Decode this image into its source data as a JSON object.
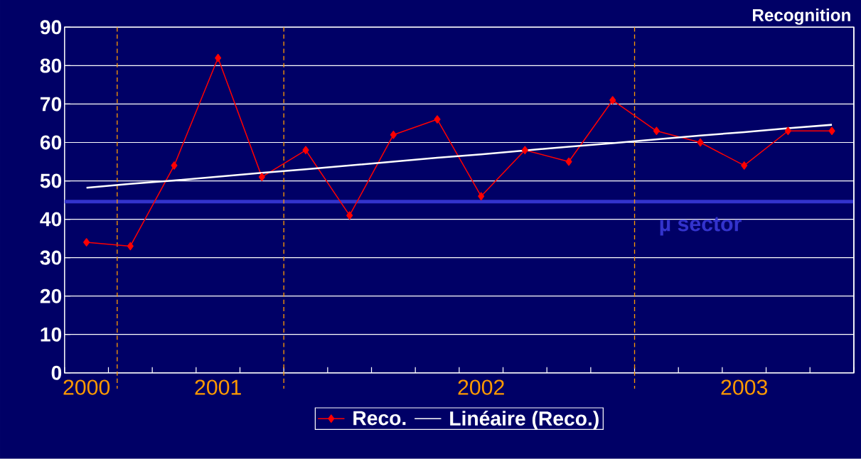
{
  "chart_data": {
    "type": "line",
    "ylabel": "Recognition",
    "categories": [
      "2000",
      null,
      null,
      "2001",
      null,
      null,
      null,
      null,
      null,
      "2002",
      null,
      null,
      null,
      null,
      null,
      "2003",
      null,
      null
    ],
    "series": [
      {
        "name": "Reco.",
        "color": "#ff0000",
        "marker": "diamond",
        "values": [
          34,
          33,
          54,
          82,
          51,
          58,
          41,
          62,
          66,
          46,
          58,
          55,
          71,
          63,
          60,
          54,
          63,
          63
        ]
      },
      {
        "name": "Linéaire (Reco.)",
        "color": "#ffffff",
        "marker": "none",
        "values": [
          48.2,
          49.2,
          50.1,
          51.1,
          52.1,
          53.0,
          54.0,
          55.0,
          56.0,
          56.9,
          57.9,
          58.9,
          59.8,
          60.8,
          61.8,
          62.7,
          63.7,
          64.6
        ]
      }
    ],
    "ylim": [
      0,
      90
    ],
    "yticks": [
      0,
      10,
      20,
      30,
      40,
      50,
      60,
      70,
      80,
      90
    ],
    "grid": "y",
    "legend": "bottom",
    "ref_lines": [
      {
        "axis": "y",
        "value": 44.6,
        "label": "µ sector",
        "color": "#3333cc",
        "line_style": "solid"
      }
    ]
  }
}
